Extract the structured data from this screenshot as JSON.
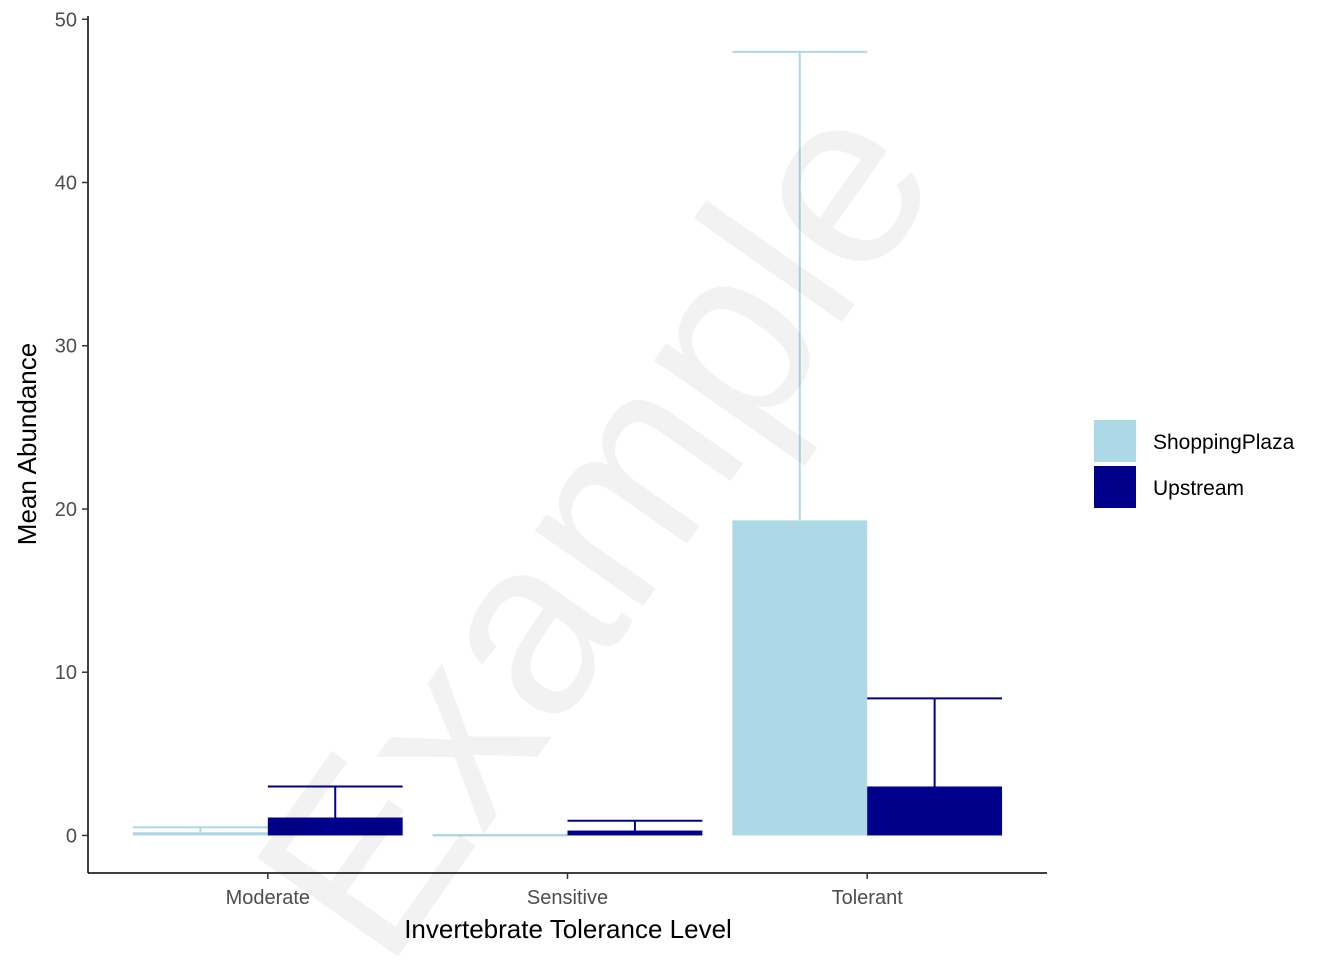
{
  "watermark": "Example",
  "chart_data": {
    "type": "bar",
    "title": "",
    "xlabel": "Invertebrate Tolerance Level",
    "ylabel": "Mean Abundance",
    "categories": [
      "Moderate",
      "Sensitive",
      "Tolerant"
    ],
    "ylim": [
      -2.3,
      50.2
    ],
    "yticks": [
      0,
      10,
      20,
      30,
      40,
      50
    ],
    "grid": false,
    "legend_position": "right",
    "series": [
      {
        "name": "ShoppingPlaza",
        "color": "#add8e6",
        "values": [
          0.2,
          0.0,
          19.3
        ],
        "error_upper": [
          0.5,
          0.0,
          48.0
        ]
      },
      {
        "name": "Upstream",
        "color": "#00008b",
        "values": [
          1.1,
          0.3,
          3.0
        ],
        "error_upper": [
          3.0,
          0.9,
          8.4
        ]
      }
    ]
  }
}
